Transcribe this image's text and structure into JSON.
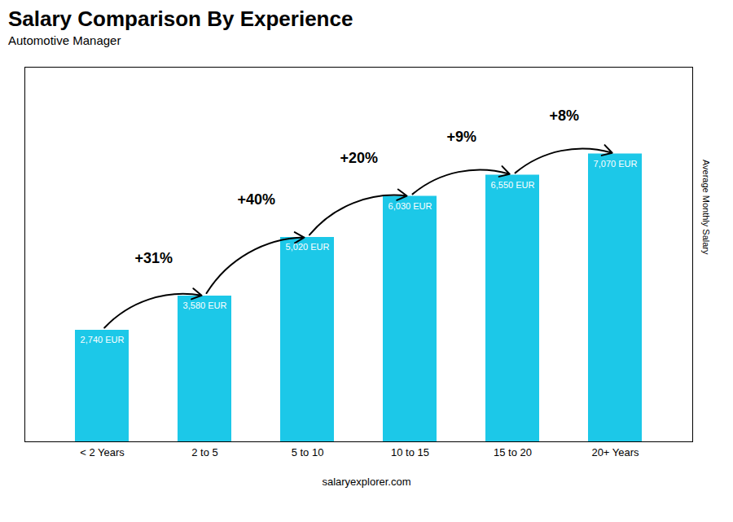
{
  "chart_data": {
    "type": "bar",
    "title": "Salary Comparison By Experience",
    "subtitle": "Automotive Manager",
    "ylabel": "Average Monthly Salary",
    "caption": "salaryexplorer.com",
    "categories": [
      "< 2 Years",
      "2 to 5",
      "5 to 10",
      "10 to 15",
      "15 to 20",
      "20+ Years"
    ],
    "values": [
      2740,
      3580,
      5020,
      6030,
      6550,
      7070
    ],
    "value_labels": [
      "2,740 EUR",
      "3,580 EUR",
      "5,020 EUR",
      "6,030 EUR",
      "6,550 EUR",
      "7,070 EUR"
    ],
    "data_labels": true,
    "color": "#1CC8E8",
    "ylim": [
      0,
      9200
    ],
    "tick_labels": "x",
    "grid": false,
    "annotations": [
      {
        "from": "< 2 Years",
        "to": "2 to 5",
        "text": "+31%"
      },
      {
        "from": "2 to 5",
        "to": "5 to 10",
        "text": "+40%"
      },
      {
        "from": "5 to 10",
        "to": "10 to 15",
        "text": "+20%"
      },
      {
        "from": "10 to 15",
        "to": "15 to 20",
        "text": "+9%"
      },
      {
        "from": "15 to 20",
        "to": "20+ Years",
        "text": "+8%"
      }
    ]
  }
}
